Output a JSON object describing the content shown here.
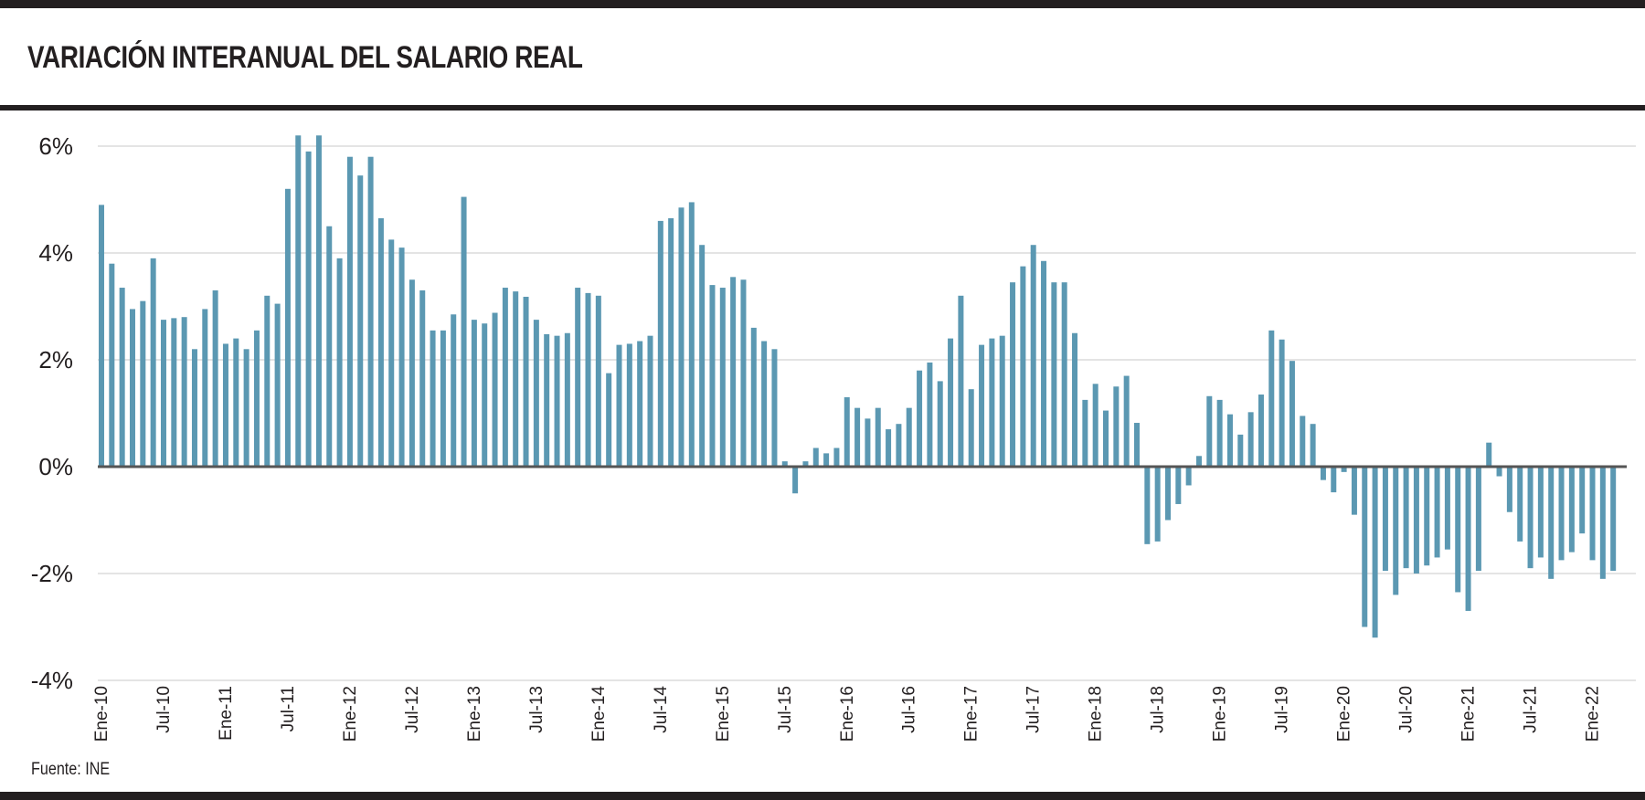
{
  "title": "VARIACIÓN INTERANUAL DEL SALARIO REAL",
  "source": "Fuente: INE",
  "colors": {
    "bar": "#5b98b2",
    "frame": "#231f20",
    "grid": "#c8c8c8",
    "baseline": "#555555"
  },
  "chart_data": {
    "type": "bar",
    "title": "VARIACIÓN INTERANUAL DEL SALARIO REAL",
    "xlabel": "",
    "ylabel": "",
    "ylim": [
      -4,
      6
    ],
    "yticks": [
      6,
      4,
      2,
      0,
      -2,
      -4
    ],
    "ytick_labels": [
      "6%",
      "4%",
      "2%",
      "0%",
      "-2%",
      "-4%"
    ],
    "grid": true,
    "start": "Ene-10",
    "frequency": "monthly",
    "xtick_labels": [
      "Ene-10",
      "Jul-10",
      "Ene-11",
      "Jul-11",
      "Ene-12",
      "Jul-12",
      "Ene-13",
      "Jul-13",
      "Ene-14",
      "Jul-14",
      "Ene-15",
      "Jul-15",
      "Ene-16",
      "Jul-16",
      "Ene-17",
      "Jul-17",
      "Ene-18",
      "Jul-18",
      "Ene-19",
      "Jul-19",
      "Ene-20",
      "Jul-20",
      "Ene-21",
      "Jul-21",
      "Ene-22"
    ],
    "values": [
      4.9,
      3.8,
      3.35,
      2.95,
      3.1,
      3.9,
      2.75,
      2.78,
      2.8,
      2.2,
      2.95,
      3.3,
      2.3,
      2.4,
      2.2,
      2.55,
      3.2,
      3.05,
      5.2,
      6.2,
      5.9,
      6.2,
      4.5,
      3.9,
      5.8,
      5.45,
      5.8,
      4.65,
      4.25,
      4.1,
      3.5,
      3.3,
      2.55,
      2.55,
      2.85,
      5.05,
      2.75,
      2.68,
      2.88,
      3.35,
      3.28,
      3.18,
      2.75,
      2.48,
      2.45,
      2.5,
      3.35,
      3.25,
      3.2,
      1.75,
      2.28,
      2.3,
      2.35,
      2.45,
      4.6,
      4.65,
      4.85,
      4.95,
      4.15,
      3.4,
      3.35,
      3.55,
      3.5,
      2.6,
      2.35,
      2.2,
      0.1,
      -0.5,
      0.1,
      0.35,
      0.25,
      0.35,
      1.3,
      1.1,
      0.9,
      1.1,
      0.7,
      0.8,
      1.1,
      1.8,
      1.95,
      1.6,
      2.4,
      3.2,
      1.45,
      2.28,
      2.4,
      2.45,
      3.45,
      3.75,
      4.15,
      3.85,
      3.45,
      3.45,
      2.5,
      1.25,
      1.55,
      1.05,
      1.5,
      1.7,
      0.82,
      -1.45,
      -1.4,
      -1.0,
      -0.7,
      -0.35,
      0.2,
      1.32,
      1.25,
      0.98,
      0.6,
      1.02,
      1.35,
      2.55,
      2.38,
      1.98,
      0.95,
      0.8,
      -0.25,
      -0.48,
      -0.1,
      -0.9,
      -3.0,
      -3.2,
      -1.95,
      -2.4,
      -1.9,
      -2.0,
      -1.85,
      -1.7,
      -1.55,
      -2.35,
      -2.7,
      -1.95,
      0.45,
      -0.18,
      -0.85,
      -1.4,
      -1.9,
      -1.7,
      -2.1,
      -1.75,
      -1.6,
      -1.25,
      -1.75,
      -2.1,
      -1.95
    ]
  }
}
